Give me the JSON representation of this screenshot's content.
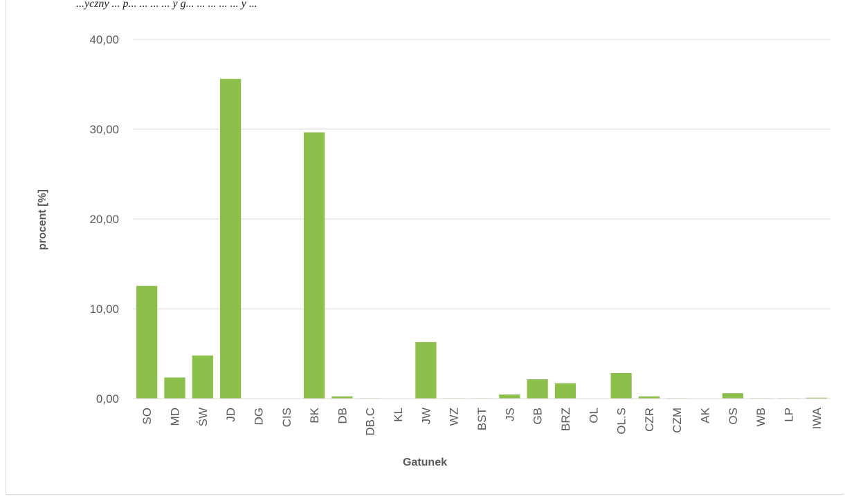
{
  "header_fragment": "...yczny ... p... ... ... ... y g... ... ... ... ... y ...",
  "chart_data": {
    "type": "bar",
    "xlabel": "Gatunek",
    "ylabel": "procent [%]",
    "ylim": [
      0,
      40
    ],
    "yticks": [
      "0,00",
      "10,00",
      "20,00",
      "30,00",
      "40,00"
    ],
    "ytick_values": [
      0,
      10,
      20,
      30,
      40
    ],
    "grid": true,
    "bar_color": "#8dc04b",
    "categories": [
      "SO",
      "MD",
      "ŚW",
      "JD",
      "DG",
      "CIS",
      "BK",
      "DB",
      "DB.C",
      "KL",
      "JW",
      "WZ",
      "BST",
      "JS",
      "GB",
      "BRZ",
      "OL",
      "OL.S",
      "CZR",
      "CZM",
      "AK",
      "OS",
      "WB",
      "LP",
      "IWA"
    ],
    "values": [
      12.55,
      2.35,
      4.8,
      35.6,
      0.0,
      0.0,
      29.65,
      0.25,
      0.05,
      0.0,
      6.3,
      0.05,
      0.05,
      0.45,
      2.15,
      1.7,
      0.0,
      2.85,
      0.25,
      0.05,
      0.0,
      0.6,
      0.05,
      0.05,
      0.1
    ]
  }
}
